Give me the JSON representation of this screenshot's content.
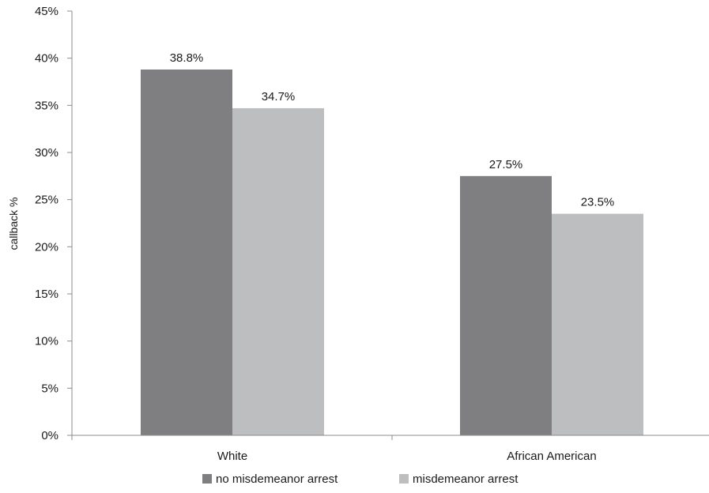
{
  "chart_data": {
    "type": "bar",
    "categories": [
      "White",
      "African American"
    ],
    "series": [
      {
        "name": "no misdemeanor arrest",
        "values": [
          38.8,
          27.5
        ],
        "labels": [
          "38.8%",
          "27.5%"
        ],
        "color": "#7f7f82"
      },
      {
        "name": "misdemeanor arrest",
        "values": [
          34.7,
          23.5
        ],
        "labels": [
          "34.7%",
          "23.5%"
        ],
        "color": "#bdbec0"
      }
    ],
    "ylabel": "callback %",
    "xlabel": "",
    "ylim": [
      0,
      45
    ],
    "yticks": [
      0,
      5,
      10,
      15,
      20,
      25,
      30,
      35,
      40,
      45
    ],
    "ytick_labels": [
      "0%",
      "5%",
      "10%",
      "15%",
      "20%",
      "25%",
      "30%",
      "35%",
      "40%",
      "45%"
    ],
    "grid": false,
    "legend_position": "bottom"
  }
}
